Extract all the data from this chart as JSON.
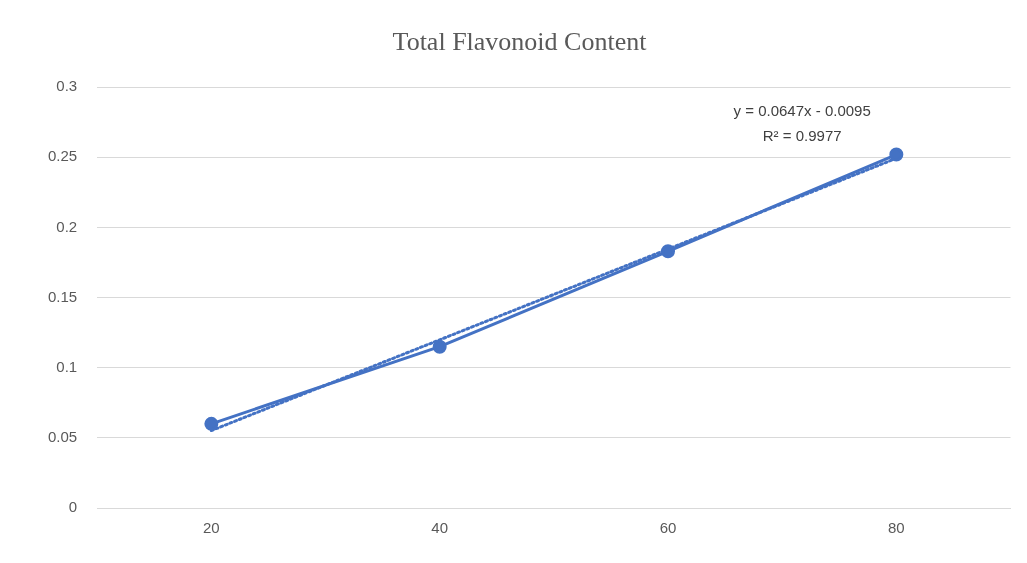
{
  "chart_data": {
    "type": "line",
    "title": "Total Flavonoid Content",
    "categories": [
      "20",
      "40",
      "60",
      "80"
    ],
    "series": [
      {
        "color": "#4472c4",
        "values": [
          0.06,
          0.115,
          0.183,
          0.252
        ],
        "marker": "circle",
        "line_style": "solid"
      },
      {
        "color": "#4472c4",
        "values": [
          0.0552,
          0.1199,
          0.1846,
          0.2493
        ],
        "marker": "none",
        "line_style": "dotted"
      }
    ],
    "ylim": [
      0,
      0.3
    ],
    "yticks": [
      0,
      0.05,
      0.1,
      0.15,
      0.2,
      0.25,
      0.3
    ],
    "grid": "y",
    "legend": false,
    "annotations": [
      "y = 0.0647x - 0.0095",
      "R² = 0.9977"
    ]
  }
}
